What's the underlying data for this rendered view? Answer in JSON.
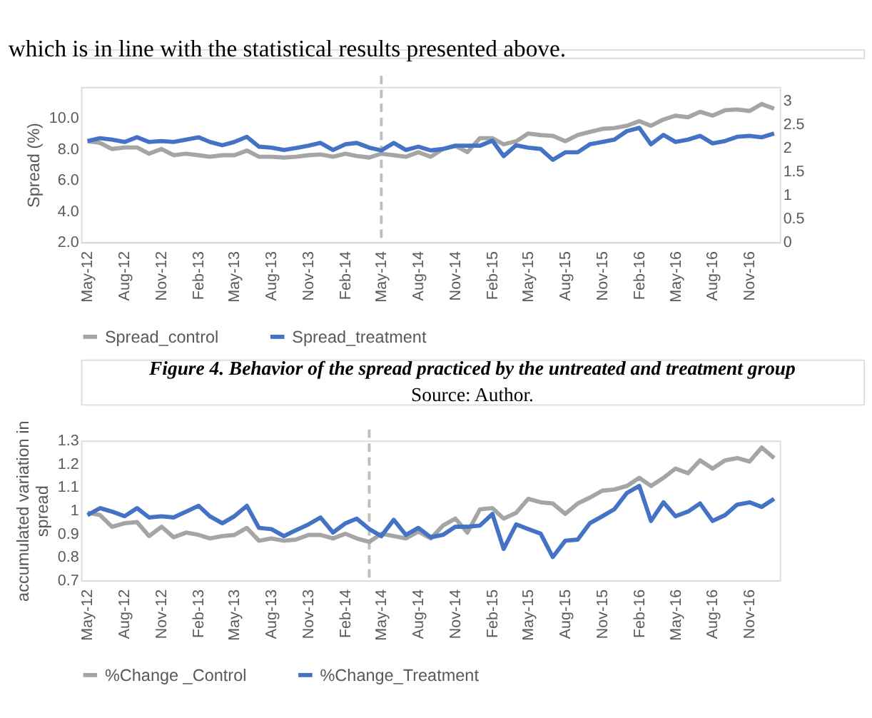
{
  "chart_data": [
    {
      "type": "line",
      "ylabel": "Spread (%)",
      "annotations": [
        "which is in line with the statistical results presented above.",
        "Figure 4. Behavior of the spread practiced by the untreated and treatment group",
        "Source: Author."
      ],
      "x": [
        "2012-05",
        "2012-06",
        "2012-07",
        "2012-08",
        "2012-09",
        "2012-10",
        "2012-11",
        "2012-12",
        "2013-01",
        "2013-02",
        "2013-03",
        "2013-04",
        "2013-05",
        "2013-06",
        "2013-07",
        "2013-08",
        "2013-09",
        "2013-10",
        "2013-11",
        "2013-12",
        "2014-01",
        "2014-02",
        "2014-03",
        "2014-04",
        "2014-05",
        "2014-06",
        "2014-07",
        "2014-08",
        "2014-09",
        "2014-10",
        "2014-11",
        "2014-12",
        "2015-01",
        "2015-02",
        "2015-03",
        "2015-04",
        "2015-05",
        "2015-06",
        "2015-07",
        "2015-08",
        "2015-09",
        "2015-10",
        "2015-11",
        "2015-12",
        "2016-01",
        "2016-02",
        "2016-03",
        "2016-04",
        "2016-05",
        "2016-06",
        "2016-07",
        "2016-08",
        "2016-09",
        "2016-10",
        "2016-11",
        "2016-12",
        "2017-01"
      ],
      "xlim": [
        "2012-04-15",
        "2017-01-15"
      ],
      "xticks": [
        {
          "value": "2012-05",
          "label": "May-12"
        },
        {
          "value": "2012-08",
          "label": "Aug-12"
        },
        {
          "value": "2012-11",
          "label": "Nov-12"
        },
        {
          "value": "2013-02",
          "label": "Feb-13"
        },
        {
          "value": "2013-05",
          "label": "May-13"
        },
        {
          "value": "2013-08",
          "label": "Aug-13"
        },
        {
          "value": "2013-11",
          "label": "Nov-13"
        },
        {
          "value": "2014-02",
          "label": "Feb-14"
        },
        {
          "value": "2014-05",
          "label": "May-14"
        },
        {
          "value": "2014-08",
          "label": "Aug-14"
        },
        {
          "value": "2014-11",
          "label": "Nov-14"
        },
        {
          "value": "2015-02",
          "label": "Feb-15"
        },
        {
          "value": "2015-05",
          "label": "May-15"
        },
        {
          "value": "2015-08",
          "label": "Aug-15"
        },
        {
          "value": "2015-11",
          "label": "Nov-15"
        },
        {
          "value": "2016-02",
          "label": "Feb-16"
        },
        {
          "value": "2016-05",
          "label": "May-16"
        },
        {
          "value": "2016-08",
          "label": "Aug-16"
        },
        {
          "value": "2016-11",
          "label": "Nov-16"
        }
      ],
      "ylim": [
        2,
        12
      ],
      "yticks": [
        {
          "value": 2,
          "label": "2.0"
        },
        {
          "value": 4,
          "label": "4.0"
        },
        {
          "value": 6,
          "label": "6.0"
        },
        {
          "value": 8,
          "label": "8.0"
        },
        {
          "value": 10,
          "label": "10.0"
        }
      ],
      "y2lim": [
        0,
        3.3
      ],
      "y2ticks": [
        0,
        0.5,
        1,
        1.5,
        2,
        2.5,
        3
      ],
      "grid": false,
      "legend": "bottom",
      "marker": "none",
      "line_style": "solid",
      "ref_lines": [
        {
          "axis": "x",
          "value": "2014-05",
          "color": "#bfbfbf",
          "line_style": "dashed"
        }
      ],
      "series": [
        {
          "name": "Spread_control",
          "color": "#a5a5a5",
          "values": [
            8.5,
            8.4,
            8.0,
            8.1,
            8.1,
            7.7,
            8.0,
            7.6,
            7.7,
            7.6,
            7.5,
            7.6,
            7.6,
            7.9,
            7.5,
            7.5,
            7.45,
            7.5,
            7.6,
            7.65,
            7.5,
            7.7,
            7.55,
            7.45,
            7.7,
            7.6,
            7.5,
            7.8,
            7.5,
            8.0,
            8.2,
            7.8,
            8.7,
            8.7,
            8.3,
            8.5,
            9.0,
            8.9,
            8.85,
            8.5,
            8.9,
            9.1,
            9.3,
            9.35,
            9.5,
            9.8,
            9.5,
            9.9,
            10.15,
            10.05,
            10.4,
            10.15,
            10.5,
            10.55,
            10.45,
            10.9,
            10.6
          ]
        },
        {
          "name": "Spread_treatment",
          "color": "#4472c4",
          "axis": "y2",
          "values": [
            2.15,
            2.21,
            2.18,
            2.13,
            2.23,
            2.13,
            2.15,
            2.13,
            2.18,
            2.23,
            2.13,
            2.06,
            2.13,
            2.24,
            2.03,
            2.01,
            1.96,
            2.0,
            2.05,
            2.11,
            1.96,
            2.08,
            2.11,
            2.01,
            1.95,
            2.11,
            1.96,
            2.03,
            1.95,
            1.98,
            2.05,
            2.05,
            2.05,
            2.16,
            1.83,
            2.06,
            2.01,
            1.98,
            1.75,
            1.91,
            1.91,
            2.08,
            2.13,
            2.18,
            2.36,
            2.43,
            2.08,
            2.28,
            2.13,
            2.18,
            2.26,
            2.1,
            2.15,
            2.24,
            2.26,
            2.23,
            2.31
          ]
        }
      ]
    },
    {
      "type": "line",
      "ylabel": "accumulated variation in spread",
      "x": [
        "2012-05",
        "2012-06",
        "2012-07",
        "2012-08",
        "2012-09",
        "2012-10",
        "2012-11",
        "2012-12",
        "2013-01",
        "2013-02",
        "2013-03",
        "2013-04",
        "2013-05",
        "2013-06",
        "2013-07",
        "2013-08",
        "2013-09",
        "2013-10",
        "2013-11",
        "2013-12",
        "2014-01",
        "2014-02",
        "2014-03",
        "2014-04",
        "2014-05",
        "2014-06",
        "2014-07",
        "2014-08",
        "2014-09",
        "2014-10",
        "2014-11",
        "2014-12",
        "2015-01",
        "2015-02",
        "2015-03",
        "2015-04",
        "2015-05",
        "2015-06",
        "2015-07",
        "2015-08",
        "2015-09",
        "2015-10",
        "2015-11",
        "2015-12",
        "2016-01",
        "2016-02",
        "2016-03",
        "2016-04",
        "2016-05",
        "2016-06",
        "2016-07",
        "2016-08",
        "2016-09",
        "2016-10",
        "2016-11",
        "2016-12",
        "2017-01"
      ],
      "xlim": [
        "2012-04-15",
        "2017-01-15"
      ],
      "xticks": [
        {
          "value": "2012-05",
          "label": "May-12"
        },
        {
          "value": "2012-08",
          "label": "Aug-12"
        },
        {
          "value": "2012-11",
          "label": "Nov-12"
        },
        {
          "value": "2013-02",
          "label": "Feb-13"
        },
        {
          "value": "2013-05",
          "label": "May-13"
        },
        {
          "value": "2013-08",
          "label": "Aug-13"
        },
        {
          "value": "2013-11",
          "label": "Nov-13"
        },
        {
          "value": "2014-02",
          "label": "Feb-14"
        },
        {
          "value": "2014-05",
          "label": "May-14"
        },
        {
          "value": "2014-08",
          "label": "Aug-14"
        },
        {
          "value": "2014-11",
          "label": "Nov-14"
        },
        {
          "value": "2015-02",
          "label": "Feb-15"
        },
        {
          "value": "2015-05",
          "label": "May-15"
        },
        {
          "value": "2015-08",
          "label": "Aug-15"
        },
        {
          "value": "2015-11",
          "label": "Nov-15"
        },
        {
          "value": "2016-02",
          "label": "Feb-16"
        },
        {
          "value": "2016-05",
          "label": "May-16"
        },
        {
          "value": "2016-08",
          "label": "Aug-16"
        },
        {
          "value": "2016-11",
          "label": "Nov-16"
        }
      ],
      "ylim": [
        0.7,
        1.3
      ],
      "yticks": [
        0.7,
        0.8,
        0.9,
        1,
        1.1,
        1.2,
        1.3
      ],
      "grid": false,
      "legend": "bottom",
      "marker": "none",
      "line_style": "solid",
      "ref_lines": [
        {
          "axis": "x",
          "value": "2014-04",
          "color": "#bfbfbf",
          "line_style": "dashed"
        }
      ],
      "series": [
        {
          "name": "%Change _Control",
          "color": "#a5a5a5",
          "values": [
            0.99,
            0.98,
            0.93,
            0.945,
            0.95,
            0.89,
            0.93,
            0.885,
            0.905,
            0.895,
            0.88,
            0.89,
            0.895,
            0.925,
            0.87,
            0.88,
            0.87,
            0.875,
            0.895,
            0.895,
            0.88,
            0.9,
            0.88,
            0.865,
            0.9,
            0.89,
            0.88,
            0.91,
            0.88,
            0.935,
            0.965,
            0.905,
            1.005,
            1.01,
            0.965,
            0.99,
            1.05,
            1.035,
            1.03,
            0.985,
            1.03,
            1.055,
            1.085,
            1.09,
            1.105,
            1.14,
            1.105,
            1.14,
            1.18,
            1.16,
            1.215,
            1.18,
            1.215,
            1.225,
            1.21,
            1.27,
            1.225
          ]
        },
        {
          "name": "%Change_Treatment",
          "color": "#4472c4",
          "values": [
            0.98,
            1.01,
            0.995,
            0.975,
            1.01,
            0.97,
            0.975,
            0.97,
            0.995,
            1.02,
            0.975,
            0.945,
            0.975,
            1.02,
            0.925,
            0.92,
            0.89,
            0.915,
            0.94,
            0.97,
            0.905,
            0.945,
            0.965,
            0.92,
            0.89,
            0.96,
            0.895,
            0.925,
            0.885,
            0.895,
            0.93,
            0.93,
            0.935,
            0.985,
            0.835,
            0.94,
            0.92,
            0.9,
            0.8,
            0.87,
            0.875,
            0.945,
            0.975,
            1.005,
            1.075,
            1.105,
            0.955,
            1.035,
            0.975,
            0.995,
            1.03,
            0.955,
            0.98,
            1.025,
            1.035,
            1.015,
            1.05
          ]
        }
      ]
    }
  ]
}
